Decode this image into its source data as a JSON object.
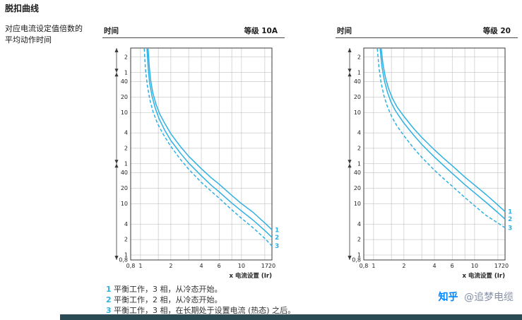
{
  "page": {
    "title": "脱扣曲线",
    "subtitle_lines": [
      "对应电流设定值倍数的",
      "平均动作时间"
    ],
    "watermark": {
      "brand": "知乎",
      "handle": "@追梦电缆"
    }
  },
  "legend": {
    "items": [
      {
        "num": "1",
        "text": "平衡工作，3 相，从冷态开始。"
      },
      {
        "num": "2",
        "text": "平衡工作，2 相，从冷态开始。"
      },
      {
        "num": "3",
        "text": "平衡工作，3 相，在长期处于设置电流 (热态) 之后。"
      }
    ]
  },
  "colors": {
    "curve": "#2fb1e3",
    "grid": "#b3b3b3",
    "axis": "#3a3a3a",
    "text": "#222222",
    "legend_num": "#2fb1e3",
    "zhihu_blue": "#0084ff",
    "watermark_gray": "#8590a6",
    "bottom_bar": "#2a4b54"
  },
  "chart_data": [
    {
      "type": "line",
      "title_left": "时间",
      "title_right": "等级 10A",
      "xlabel": "x 电流设置 (Ir)",
      "x_scale": "log",
      "y_scale": "log",
      "xlim": [
        0.8,
        20
      ],
      "ylim_seconds": [
        0.8,
        10800
      ],
      "x_ticks": [
        {
          "v": 0.8,
          "label": "0,8"
        },
        {
          "v": 1,
          "label": "1"
        },
        {
          "v": 2,
          "label": "2"
        },
        {
          "v": 4,
          "label": "4"
        },
        {
          "v": 6,
          "label": "6"
        },
        {
          "v": 10,
          "label": "10"
        },
        {
          "v": 17,
          "label": "17"
        },
        {
          "v": 20,
          "label": "20"
        }
      ],
      "x_grid": [
        0.8,
        1,
        1.5,
        2,
        3,
        4,
        6,
        8,
        10,
        17,
        20
      ],
      "y_ticks": [
        {
          "v": 7200,
          "label": "2"
        },
        {
          "v": 3600,
          "label": "1"
        },
        {
          "v": 2400,
          "label": "40"
        },
        {
          "v": 1200,
          "label": "20"
        },
        {
          "v": 600,
          "label": "10"
        },
        {
          "v": 240,
          "label": "4"
        },
        {
          "v": 120,
          "label": "2"
        },
        {
          "v": 60,
          "label": "1"
        },
        {
          "v": 40,
          "label": "40"
        },
        {
          "v": 20,
          "label": "20"
        },
        {
          "v": 10,
          "label": "10"
        },
        {
          "v": 4,
          "label": "4"
        },
        {
          "v": 2,
          "label": "2"
        },
        {
          "v": 1,
          "label": "1"
        },
        {
          "v": 0.8,
          "label": "0,8"
        }
      ],
      "y_segment_boundaries_seconds": [
        3600,
        60
      ],
      "series": [
        {
          "name": "1",
          "style": "solid",
          "points": [
            [
              1.19,
              10500
            ],
            [
              1.22,
              5000
            ],
            [
              1.26,
              2600
            ],
            [
              1.32,
              1500
            ],
            [
              1.42,
              880
            ],
            [
              1.55,
              560
            ],
            [
              1.75,
              360
            ],
            [
              2.0,
              230
            ],
            [
              2.5,
              128
            ],
            [
              3.0,
              84
            ],
            [
              4.0,
              48
            ],
            [
              5.0,
              32
            ],
            [
              6.0,
              24
            ],
            [
              8.0,
              14.5
            ],
            [
              10,
              10
            ],
            [
              13,
              6.8
            ],
            [
              17,
              4.2
            ],
            [
              20,
              3.1
            ]
          ]
        },
        {
          "name": "2",
          "style": "solid",
          "points": [
            [
              1.16,
              10500
            ],
            [
              1.19,
              4600
            ],
            [
              1.23,
              2300
            ],
            [
              1.3,
              1250
            ],
            [
              1.4,
              730
            ],
            [
              1.53,
              450
            ],
            [
              1.72,
              280
            ],
            [
              2.0,
              170
            ],
            [
              2.5,
              95
            ],
            [
              3.0,
              62
            ],
            [
              4.0,
              35
            ],
            [
              5.0,
              23
            ],
            [
              6.0,
              17
            ],
            [
              8.0,
              10.3
            ],
            [
              10,
              7.2
            ],
            [
              13,
              4.8
            ],
            [
              17,
              3.0
            ],
            [
              20,
              2.2
            ]
          ]
        },
        {
          "name": "3",
          "style": "dashed",
          "points": [
            [
              1.09,
              10500
            ],
            [
              1.12,
              4200
            ],
            [
              1.17,
              2000
            ],
            [
              1.24,
              1050
            ],
            [
              1.34,
              600
            ],
            [
              1.48,
              360
            ],
            [
              1.68,
              225
            ],
            [
              2.0,
              130
            ],
            [
              2.5,
              72
            ],
            [
              3.0,
              47
            ],
            [
              4.0,
              26
            ],
            [
              5.0,
              17.5
            ],
            [
              6.0,
              12.8
            ],
            [
              8.0,
              7.6
            ],
            [
              10,
              5.2
            ],
            [
              13,
              3.4
            ],
            [
              17,
              2.1
            ],
            [
              20,
              1.5
            ]
          ]
        }
      ]
    },
    {
      "type": "line",
      "title_left": "时间",
      "title_right": "等级 20",
      "xlabel": "x 电流设置 (Ir)",
      "x_scale": "log",
      "y_scale": "log",
      "xlim": [
        0.8,
        20
      ],
      "ylim_seconds": [
        0.8,
        10800
      ],
      "x_ticks": [
        {
          "v": 0.8,
          "label": "0,8"
        },
        {
          "v": 1,
          "label": "1"
        },
        {
          "v": 2,
          "label": "2"
        },
        {
          "v": 4,
          "label": "4"
        },
        {
          "v": 6,
          "label": "6"
        },
        {
          "v": 10,
          "label": "10"
        },
        {
          "v": 17,
          "label": "17"
        },
        {
          "v": 20,
          "label": "20"
        }
      ],
      "x_grid": [
        0.8,
        1,
        1.5,
        2,
        3,
        4,
        6,
        8,
        10,
        17,
        20
      ],
      "y_ticks": [
        {
          "v": 7200,
          "label": "2"
        },
        {
          "v": 3600,
          "label": "1"
        },
        {
          "v": 2400,
          "label": "40"
        },
        {
          "v": 1200,
          "label": "20"
        },
        {
          "v": 600,
          "label": "10"
        },
        {
          "v": 240,
          "label": "4"
        },
        {
          "v": 120,
          "label": "2"
        },
        {
          "v": 60,
          "label": "1"
        },
        {
          "v": 40,
          "label": "40"
        },
        {
          "v": 20,
          "label": "20"
        },
        {
          "v": 10,
          "label": "10"
        },
        {
          "v": 4,
          "label": "4"
        },
        {
          "v": 2,
          "label": "2"
        },
        {
          "v": 1,
          "label": "1"
        },
        {
          "v": 0.8,
          "label": "0,8"
        }
      ],
      "y_segment_boundaries_seconds": [
        3600,
        60
      ],
      "series": [
        {
          "name": "1",
          "style": "solid",
          "points": [
            [
              1.19,
              10500
            ],
            [
              1.24,
              5200
            ],
            [
              1.31,
              2900
            ],
            [
              1.4,
              1800
            ],
            [
              1.53,
              1150
            ],
            [
              1.7,
              780
            ],
            [
              2.0,
              500
            ],
            [
              2.5,
              290
            ],
            [
              3.0,
              196
            ],
            [
              4.0,
              112
            ],
            [
              5.0,
              75
            ],
            [
              6.0,
              55
            ],
            [
              8.0,
              33
            ],
            [
              10,
              23
            ],
            [
              13,
              15
            ],
            [
              17,
              9.4
            ],
            [
              20,
              7.0
            ]
          ]
        },
        {
          "name": "2",
          "style": "solid",
          "points": [
            [
              1.16,
              10500
            ],
            [
              1.21,
              4700
            ],
            [
              1.28,
              2500
            ],
            [
              1.37,
              1500
            ],
            [
              1.49,
              950
            ],
            [
              1.65,
              640
            ],
            [
              2.0,
              370
            ],
            [
              2.5,
              215
            ],
            [
              3.0,
              143
            ],
            [
              4.0,
              81
            ],
            [
              5.0,
              54
            ],
            [
              6.0,
              39
            ],
            [
              8.0,
              23.5
            ],
            [
              10,
              16.3
            ],
            [
              13,
              10.6
            ],
            [
              17,
              6.7
            ],
            [
              20,
              5.0
            ]
          ]
        },
        {
          "name": "3",
          "style": "dashed",
          "points": [
            [
              1.09,
              10500
            ],
            [
              1.13,
              4400
            ],
            [
              1.19,
              2200
            ],
            [
              1.27,
              1250
            ],
            [
              1.37,
              780
            ],
            [
              1.51,
              500
            ],
            [
              1.7,
              330
            ],
            [
              2.0,
              210
            ],
            [
              2.5,
              120
            ],
            [
              3.0,
              80
            ],
            [
              4.0,
              45
            ],
            [
              5.0,
              30
            ],
            [
              6.0,
              22
            ],
            [
              8.0,
              13.2
            ],
            [
              10,
              9.1
            ],
            [
              13,
              5.9
            ],
            [
              17,
              4.2
            ],
            [
              20,
              3.4
            ]
          ]
        }
      ]
    }
  ]
}
